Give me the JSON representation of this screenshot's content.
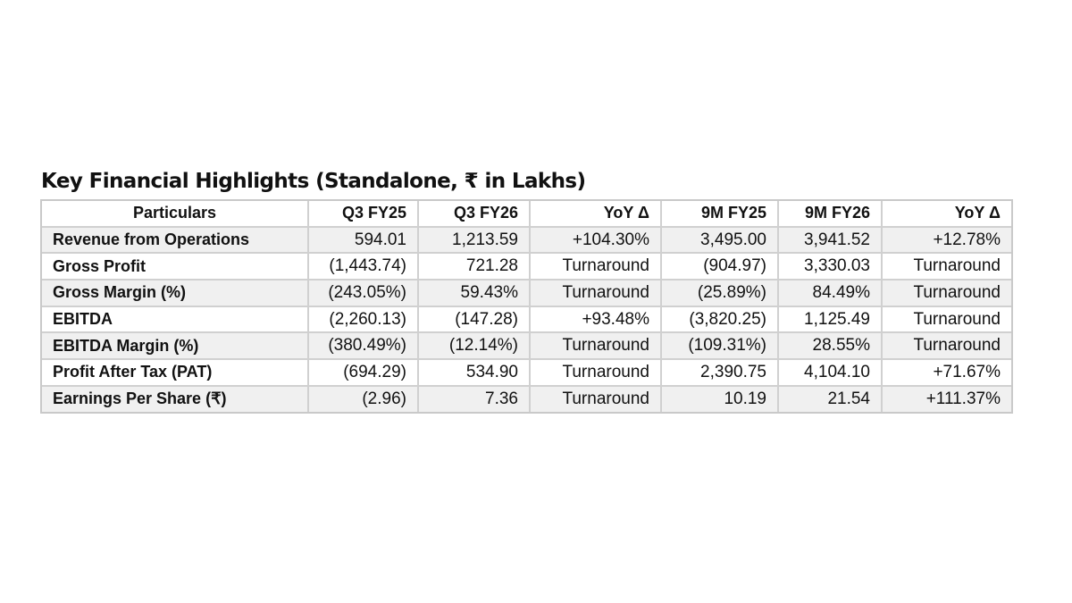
{
  "title": "Key Financial Highlights (Standalone, ₹ in Lakhs)",
  "table": {
    "headers": [
      "Particulars",
      "Q3 FY25",
      "Q3 FY26",
      "YoY Δ",
      "9M FY25",
      "9M FY26",
      "YoY Δ"
    ],
    "rows": [
      [
        "Revenue from Operations",
        "594.01",
        "1,213.59",
        "+104.30%",
        "3,495.00",
        "3,941.52",
        "+12.78%"
      ],
      [
        "Gross Profit",
        "(1,443.74)",
        "721.28",
        "Turnaround",
        "(904.97)",
        "3,330.03",
        "Turnaround"
      ],
      [
        "Gross Margin (%)",
        "(243.05%)",
        "59.43%",
        "Turnaround",
        "(25.89%)",
        "84.49%",
        "Turnaround"
      ],
      [
        "EBITDA",
        "(2,260.13)",
        "(147.28)",
        "+93.48%",
        "(3,820.25)",
        "1,125.49",
        "Turnaround"
      ],
      [
        "EBITDA Margin (%)",
        "(380.49%)",
        "(12.14%)",
        "Turnaround",
        "(109.31%)",
        "28.55%",
        "Turnaround"
      ],
      [
        "Profit After Tax (PAT)",
        "(694.29)",
        "534.90",
        "Turnaround",
        "2,390.75",
        "4,104.10",
        "+71.67%"
      ],
      [
        "Earnings Per Share (₹)",
        "(2.96)",
        "7.36",
        "Turnaround",
        "10.19",
        "21.54",
        "+111.37%"
      ]
    ]
  }
}
